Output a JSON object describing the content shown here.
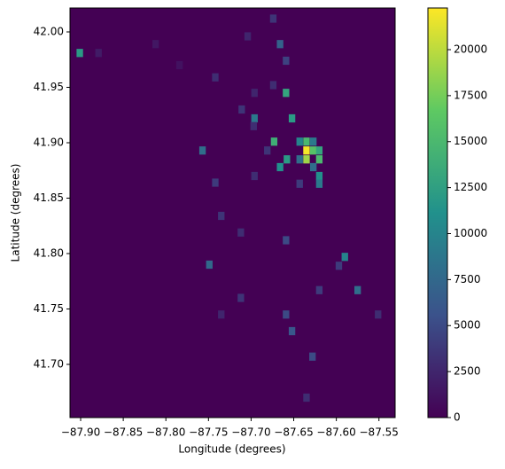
{
  "chart_data": {
    "type": "hist2d",
    "xlabel": "Longitude (degrees)",
    "ylabel": "Latitude (degrees)",
    "xlim": [
      -87.9125,
      -87.531
    ],
    "ylim": [
      41.652,
      42.0216
    ],
    "bin_size": [
      0.00763,
      0.00739
    ],
    "xticks": [
      {
        "value": -87.9,
        "label": "−87.90"
      },
      {
        "value": -87.85,
        "label": "−87.85"
      },
      {
        "value": -87.8,
        "label": "−87.80"
      },
      {
        "value": -87.75,
        "label": "−87.75"
      },
      {
        "value": -87.7,
        "label": "−87.70"
      },
      {
        "value": -87.65,
        "label": "−87.65"
      },
      {
        "value": -87.6,
        "label": "−87.60"
      },
      {
        "value": -87.55,
        "label": "−87.55"
      }
    ],
    "yticks": [
      {
        "value": 41.7,
        "label": "41.70"
      },
      {
        "value": 41.75,
        "label": "41.75"
      },
      {
        "value": 41.8,
        "label": "41.80"
      },
      {
        "value": 41.85,
        "label": "41.85"
      },
      {
        "value": 41.9,
        "label": "41.90"
      },
      {
        "value": 41.95,
        "label": "41.95"
      },
      {
        "value": 42.0,
        "label": "42.00"
      }
    ],
    "colormap": "viridis",
    "clim": [
      0,
      22265
    ],
    "colorbar_ticks": [
      0,
      2500,
      5000,
      7500,
      10000,
      12500,
      15000,
      17500,
      20000
    ],
    "x": [
      -87.901,
      -87.879,
      -87.812,
      -87.784,
      -87.674,
      -87.666,
      -87.659,
      -87.704,
      -87.742,
      -87.659,
      -87.674,
      -87.696,
      -87.652,
      -87.696,
      -87.711,
      -87.673,
      -87.635,
      -87.643,
      -87.627,
      -87.635,
      -87.627,
      -87.62,
      -87.658,
      -87.643,
      -87.635,
      -87.62,
      -87.666,
      -87.627,
      -87.62,
      -87.62,
      -87.643,
      -87.757,
      -87.742,
      -87.735,
      -87.712,
      -87.659,
      -87.59,
      -87.597,
      -87.749,
      -87.62,
      -87.575,
      -87.659,
      -87.652,
      -87.628,
      -87.635,
      -87.712,
      -87.735,
      -87.551,
      -87.697,
      -87.681,
      -87.696
    ],
    "y": [
      41.981,
      41.981,
      41.989,
      41.97,
      42.012,
      41.989,
      41.974,
      41.996,
      41.959,
      41.945,
      41.952,
      41.945,
      41.922,
      41.922,
      41.93,
      41.901,
      41.901,
      41.901,
      41.901,
      41.893,
      41.893,
      41.893,
      41.885,
      41.885,
      41.885,
      41.885,
      41.878,
      41.878,
      41.87,
      41.863,
      41.863,
      41.893,
      41.864,
      41.834,
      41.819,
      41.812,
      41.797,
      41.789,
      41.79,
      41.767,
      41.767,
      41.745,
      41.73,
      41.707,
      41.67,
      41.76,
      41.745,
      41.745,
      41.915,
      41.893,
      41.87
    ],
    "values": [
      12000,
      1800,
      1500,
      1200,
      3500,
      7000,
      4500,
      2500,
      3000,
      13000,
      3000,
      2500,
      12000,
      9000,
      3500,
      14000,
      15000,
      10000,
      9000,
      22000,
      16000,
      13000,
      12000,
      8000,
      19000,
      15000,
      11000,
      8000,
      11000,
      9000,
      4000,
      8000,
      4000,
      3500,
      3000,
      5000,
      10000,
      4000,
      7500,
      4000,
      8000,
      5000,
      6000,
      5000,
      3000,
      3500,
      2500,
      3000,
      3000,
      3500,
      3000
    ]
  }
}
